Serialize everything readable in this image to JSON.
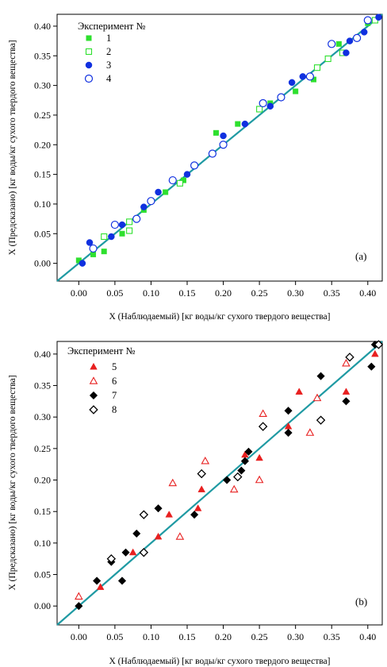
{
  "chart_data": [
    {
      "type": "scatter",
      "panel_label": "(a)",
      "xlabel": "X (Наблюдаемый) [кг воды/кг сухого твердого вещества]",
      "ylabel": "X (Предсказано) [кг воды/кг сухого твердого вещества]",
      "xlim": [
        -0.03,
        0.42
      ],
      "ylim": [
        -0.03,
        0.42
      ],
      "x_ticks": [
        "0.00",
        "0.05",
        "0.10",
        "0.15",
        "0.20",
        "0.25",
        "0.30",
        "0.35",
        "0.40"
      ],
      "y_ticks": [
        "0.00",
        "0.05",
        "0.10",
        "0.15",
        "0.20",
        "0.25",
        "0.30",
        "0.35",
        "0.40"
      ],
      "legend_title": "Эксперимент №",
      "legend_position": "top-left",
      "fit_line": {
        "slope": 1,
        "intercept": 0
      },
      "series": [
        {
          "name": "1",
          "marker": "square-filled",
          "color": "#2ee02e",
          "x": [
            0.0,
            0.02,
            0.035,
            0.06,
            0.09,
            0.12,
            0.145,
            0.19,
            0.22,
            0.265,
            0.3,
            0.325,
            0.36,
            0.4
          ],
          "y": [
            0.005,
            0.015,
            0.02,
            0.05,
            0.09,
            0.12,
            0.14,
            0.22,
            0.235,
            0.27,
            0.29,
            0.31,
            0.37,
            0.405
          ]
        },
        {
          "name": "2",
          "marker": "square-open",
          "color": "#2ee02e",
          "x": [
            0.035,
            0.07,
            0.07,
            0.14,
            0.25,
            0.33,
            0.345,
            0.365,
            0.41
          ],
          "y": [
            0.045,
            0.07,
            0.055,
            0.135,
            0.26,
            0.33,
            0.345,
            0.355,
            0.41
          ]
        },
        {
          "name": "3",
          "marker": "circle-filled",
          "color": "#1030e0",
          "x": [
            0.005,
            0.015,
            0.045,
            0.06,
            0.09,
            0.11,
            0.15,
            0.2,
            0.23,
            0.265,
            0.295,
            0.31,
            0.37,
            0.375,
            0.395,
            0.415
          ],
          "y": [
            0.0,
            0.035,
            0.045,
            0.065,
            0.095,
            0.12,
            0.15,
            0.215,
            0.235,
            0.265,
            0.305,
            0.315,
            0.355,
            0.375,
            0.39,
            0.415
          ]
        },
        {
          "name": "4",
          "marker": "circle-open",
          "color": "#1030e0",
          "x": [
            0.02,
            0.05,
            0.08,
            0.1,
            0.13,
            0.16,
            0.185,
            0.2,
            0.255,
            0.28,
            0.32,
            0.35,
            0.385,
            0.4
          ],
          "y": [
            0.025,
            0.065,
            0.075,
            0.105,
            0.14,
            0.165,
            0.185,
            0.2,
            0.27,
            0.28,
            0.315,
            0.37,
            0.38,
            0.41
          ]
        }
      ]
    },
    {
      "type": "scatter",
      "panel_label": "(b)",
      "xlabel": "X (Наблюдаемый) [кг воды/кг сухого твердого вещества]",
      "ylabel": "X (Предсказано) [кг воды/кг сухого твердого вещества]",
      "xlim": [
        -0.03,
        0.42
      ],
      "ylim": [
        -0.03,
        0.42
      ],
      "x_ticks": [
        "0.00",
        "0.05",
        "0.10",
        "0.15",
        "0.20",
        "0.25",
        "0.30",
        "0.35",
        "0.40"
      ],
      "y_ticks": [
        "0.00",
        "0.05",
        "0.10",
        "0.15",
        "0.20",
        "0.25",
        "0.30",
        "0.35",
        "0.40"
      ],
      "legend_title": "Эксперимент №",
      "legend_position": "top-left",
      "fit_line": {
        "slope": 1,
        "intercept": 0
      },
      "series": [
        {
          "name": "5",
          "marker": "triangle-filled",
          "color": "#e82020",
          "x": [
            0.03,
            0.075,
            0.11,
            0.125,
            0.165,
            0.17,
            0.23,
            0.25,
            0.29,
            0.305,
            0.37,
            0.41
          ],
          "y": [
            0.03,
            0.085,
            0.11,
            0.145,
            0.155,
            0.185,
            0.24,
            0.235,
            0.285,
            0.34,
            0.34,
            0.4
          ]
        },
        {
          "name": "6",
          "marker": "triangle-open",
          "color": "#e82020",
          "x": [
            0.0,
            0.13,
            0.14,
            0.175,
            0.215,
            0.25,
            0.255,
            0.32,
            0.33,
            0.37
          ],
          "y": [
            0.015,
            0.195,
            0.11,
            0.23,
            0.185,
            0.2,
            0.305,
            0.275,
            0.33,
            0.385
          ]
        },
        {
          "name": "7",
          "marker": "diamond-filled",
          "color": "#000000",
          "x": [
            0.0,
            0.025,
            0.045,
            0.06,
            0.065,
            0.08,
            0.11,
            0.16,
            0.205,
            0.225,
            0.23,
            0.235,
            0.29,
            0.29,
            0.335,
            0.37,
            0.405,
            0.41
          ],
          "y": [
            0.0,
            0.04,
            0.07,
            0.04,
            0.085,
            0.115,
            0.155,
            0.145,
            0.2,
            0.215,
            0.23,
            0.245,
            0.31,
            0.275,
            0.365,
            0.325,
            0.38,
            0.415
          ]
        },
        {
          "name": "8",
          "marker": "diamond-open",
          "color": "#000000",
          "x": [
            0.045,
            0.09,
            0.09,
            0.17,
            0.22,
            0.255,
            0.335,
            0.375,
            0.415
          ],
          "y": [
            0.075,
            0.145,
            0.085,
            0.21,
            0.205,
            0.285,
            0.295,
            0.395,
            0.415
          ]
        }
      ]
    }
  ]
}
